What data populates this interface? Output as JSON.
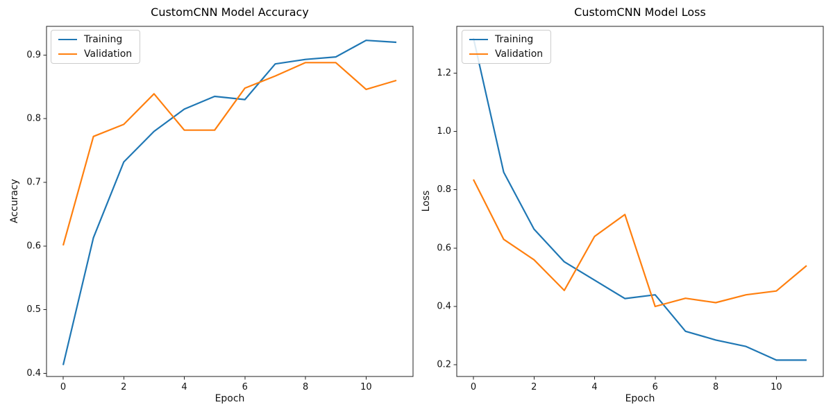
{
  "figure": {
    "background": "#ffffff"
  },
  "chart_data": [
    {
      "type": "line",
      "title": "CustomCNN Model Accuracy",
      "xlabel": "Epoch",
      "ylabel": "Accuracy",
      "x": [
        0,
        1,
        2,
        3,
        4,
        5,
        6,
        7,
        8,
        9,
        10,
        11
      ],
      "series": [
        {
          "name": "Training",
          "color": "#1f77b4",
          "values": [
            0.413,
            0.613,
            0.732,
            0.78,
            0.815,
            0.835,
            0.83,
            0.886,
            0.893,
            0.897,
            0.923,
            0.92
          ]
        },
        {
          "name": "Validation",
          "color": "#ff7f0e",
          "values": [
            0.601,
            0.772,
            0.791,
            0.839,
            0.782,
            0.782,
            0.848,
            0.867,
            0.888,
            0.888,
            0.846,
            0.86
          ]
        }
      ],
      "xlim": [
        -0.55,
        11.55
      ],
      "ylim": [
        0.395,
        0.945
      ],
      "xticks": [
        0,
        2,
        4,
        6,
        8,
        10
      ],
      "xtick_labels": [
        "0",
        "2",
        "4",
        "6",
        "8",
        "10"
      ],
      "yticks": [
        0.4,
        0.5,
        0.6,
        0.7,
        0.8,
        0.9
      ],
      "ytick_labels": [
        "0.4",
        "0.5",
        "0.6",
        "0.7",
        "0.8",
        "0.9"
      ],
      "grid": false,
      "legend_position": "upper left"
    },
    {
      "type": "line",
      "title": "CustomCNN Model Loss",
      "xlabel": "Epoch",
      "ylabel": "Loss",
      "x": [
        0,
        1,
        2,
        3,
        4,
        5,
        6,
        7,
        8,
        9,
        10,
        11
      ],
      "series": [
        {
          "name": "Training",
          "color": "#1f77b4",
          "values": [
            1.32,
            0.86,
            0.665,
            0.553,
            0.49,
            0.427,
            0.44,
            0.315,
            0.285,
            0.263,
            0.216,
            0.216
          ]
        },
        {
          "name": "Validation",
          "color": "#ff7f0e",
          "values": [
            0.835,
            0.63,
            0.56,
            0.455,
            0.64,
            0.715,
            0.4,
            0.428,
            0.413,
            0.44,
            0.453,
            0.54
          ]
        }
      ],
      "xlim": [
        -0.55,
        11.55
      ],
      "ylim": [
        0.16,
        1.36
      ],
      "xticks": [
        0,
        2,
        4,
        6,
        8,
        10
      ],
      "xtick_labels": [
        "0",
        "2",
        "4",
        "6",
        "8",
        "10"
      ],
      "yticks": [
        0.2,
        0.4,
        0.6,
        0.8,
        1.0,
        1.2
      ],
      "ytick_labels": [
        "0.2",
        "0.4",
        "0.6",
        "0.8",
        "1.0",
        "1.2"
      ],
      "grid": false,
      "legend_position": "upper left"
    }
  ]
}
